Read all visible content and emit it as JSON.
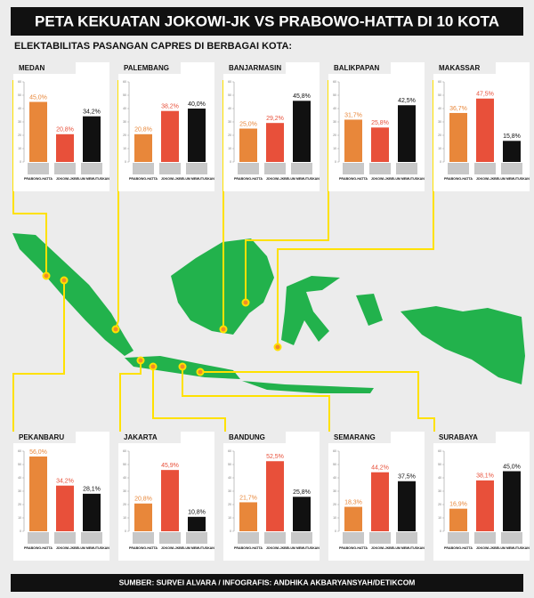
{
  "title": "PETA KEKUATAN JOKOWI-JK VS PRABOWO-HATTA DI 10 KOTA",
  "subtitle": "ELEKTABILITAS PASANGAN CAPRES DI BERBAGAI KOTA:",
  "source": "SUMBER: SURVEI ALVARA / INFOGRAFIS: ANDHIKA AKBARYANSYAH/DETIKCOM",
  "chart_data": [
    {
      "type": "bar",
      "title": "MEDAN",
      "categories": [
        "PRABOWO-HATTA",
        "JOKOWI-JK",
        "BELUM MEMUTUSKAN"
      ],
      "values": [
        45.0,
        20.8,
        34.2
      ],
      "value_labels": [
        "45,0%",
        "20,8%",
        "34,2%"
      ],
      "colors": [
        "#e8873a",
        "#e8503a",
        "#111111"
      ],
      "ylim": [
        0,
        60
      ],
      "yticks": [
        0,
        10,
        20,
        30,
        40,
        50,
        60
      ]
    },
    {
      "type": "bar",
      "title": "PALEMBANG",
      "categories": [
        "PRABOWO-HATTA",
        "JOKOWI-JK",
        "BELUM MEMUTUSKAN"
      ],
      "values": [
        20.8,
        38.2,
        40.0
      ],
      "value_labels": [
        "20,8%",
        "38,2%",
        "40,0%"
      ],
      "colors": [
        "#e8873a",
        "#e8503a",
        "#111111"
      ],
      "ylim": [
        0,
        60
      ],
      "yticks": [
        0,
        10,
        20,
        30,
        40,
        50,
        60
      ]
    },
    {
      "type": "bar",
      "title": "BANJARMASIN",
      "categories": [
        "PRABOWO-HATTA",
        "JOKOWI-JK",
        "BELUM MEMUTUSKAN"
      ],
      "values": [
        25.0,
        29.2,
        45.8
      ],
      "value_labels": [
        "25,0%",
        "29,2%",
        "45,8%"
      ],
      "colors": [
        "#e8873a",
        "#e8503a",
        "#111111"
      ],
      "ylim": [
        0,
        60
      ],
      "yticks": [
        0,
        10,
        20,
        30,
        40,
        50,
        60
      ]
    },
    {
      "type": "bar",
      "title": "BALIKPAPAN",
      "categories": [
        "PRABOWO-HATTA",
        "JOKOWI-JK",
        "BELUM MEMUTUSKAN"
      ],
      "values": [
        31.7,
        25.8,
        42.5
      ],
      "value_labels": [
        "31,7%",
        "25,8%",
        "42,5%"
      ],
      "colors": [
        "#e8873a",
        "#e8503a",
        "#111111"
      ],
      "ylim": [
        0,
        60
      ],
      "yticks": [
        0,
        10,
        20,
        30,
        40,
        50,
        60
      ]
    },
    {
      "type": "bar",
      "title": "MAKASSAR",
      "categories": [
        "PRABOWO-HATTA",
        "JOKOWI-JK",
        "BELUM MEMUTUSKAN"
      ],
      "values": [
        36.7,
        47.5,
        15.8
      ],
      "value_labels": [
        "36,7%",
        "47,5%",
        "15,8%"
      ],
      "colors": [
        "#e8873a",
        "#e8503a",
        "#111111"
      ],
      "ylim": [
        0,
        60
      ],
      "yticks": [
        0,
        10,
        20,
        30,
        40,
        50,
        60
      ]
    },
    {
      "type": "bar",
      "title": "PEKANBARU",
      "categories": [
        "PRABOWO-HATTA",
        "JOKOWI-JK",
        "BELUM MEMUTUSKAN"
      ],
      "values": [
        56.0,
        34.2,
        28.1
      ],
      "value_labels": [
        "56,0%",
        "34,2%",
        "28,1%"
      ],
      "colors": [
        "#e8873a",
        "#e8503a",
        "#111111"
      ],
      "ylim": [
        0,
        60
      ],
      "yticks": [
        0,
        10,
        20,
        30,
        40,
        50,
        60
      ]
    },
    {
      "type": "bar",
      "title": "JAKARTA",
      "categories": [
        "PRABOWO-HATTA",
        "JOKOWI-JK",
        "BELUM MEMUTUSKAN"
      ],
      "values": [
        20.8,
        45.9,
        10.8
      ],
      "value_labels": [
        "20,8%",
        "45,9%",
        "10,8%"
      ],
      "colors": [
        "#e8873a",
        "#e8503a",
        "#111111"
      ],
      "ylim": [
        0,
        60
      ],
      "yticks": [
        0,
        10,
        20,
        30,
        40,
        50,
        60
      ]
    },
    {
      "type": "bar",
      "title": "BANDUNG",
      "categories": [
        "PRABOWO-HATTA",
        "JOKOWI-JK",
        "BELUM MEMUTUSKAN"
      ],
      "values": [
        21.7,
        52.5,
        25.8
      ],
      "value_labels": [
        "21,7%",
        "52,5%",
        "25,8%"
      ],
      "colors": [
        "#e8873a",
        "#e8503a",
        "#111111"
      ],
      "ylim": [
        0,
        60
      ],
      "yticks": [
        0,
        10,
        20,
        30,
        40,
        50,
        60
      ]
    },
    {
      "type": "bar",
      "title": "SEMARANG",
      "categories": [
        "PRABOWO-HATTA",
        "JOKOWI-JK",
        "BELUM MEMUTUSKAN"
      ],
      "values": [
        18.3,
        44.2,
        37.5
      ],
      "value_labels": [
        "18,3%",
        "44,2%",
        "37,5%"
      ],
      "colors": [
        "#e8873a",
        "#e8503a",
        "#111111"
      ],
      "ylim": [
        0,
        60
      ],
      "yticks": [
        0,
        10,
        20,
        30,
        40,
        50,
        60
      ]
    },
    {
      "type": "bar",
      "title": "SURABAYA",
      "categories": [
        "PRABOWO-HATTA",
        "JOKOWI-JK",
        "BELUM MEMUTUSKAN"
      ],
      "values": [
        16.9,
        38.1,
        45.0
      ],
      "value_labels": [
        "16,9%",
        "38,1%",
        "45,0%"
      ],
      "colors": [
        "#e8873a",
        "#e8503a",
        "#111111"
      ],
      "ylim": [
        0,
        60
      ],
      "yticks": [
        0,
        10,
        20,
        30,
        40,
        50,
        60
      ]
    }
  ]
}
